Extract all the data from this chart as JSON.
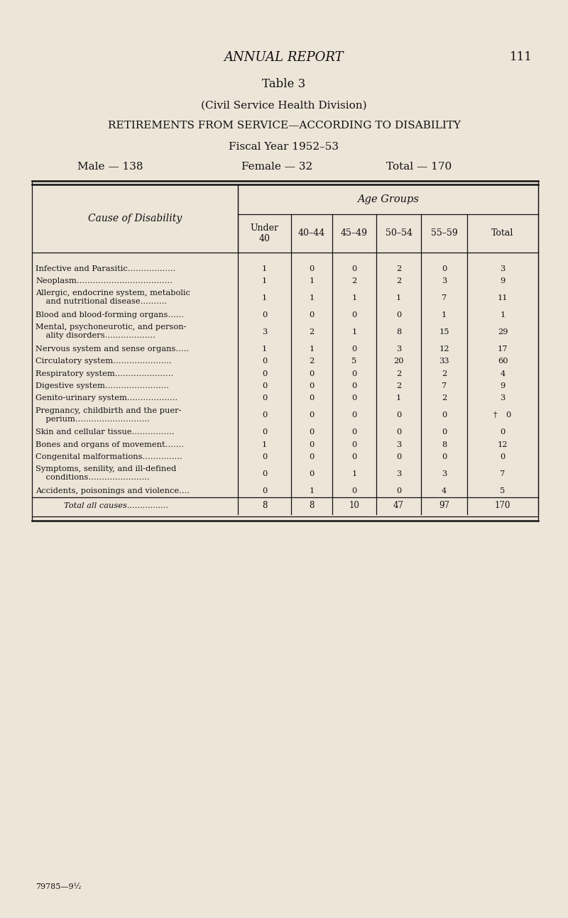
{
  "page_header": "ANNUAL REPORT",
  "page_number": "111",
  "table_number": "Table 3",
  "subtitle1": "(Civil Service Health Division)",
  "subtitle2": "RETIREMENTS FROM SERVICE—ACCORDING TO DISABILITY",
  "subtitle3": "Fiscal Year 1952–53",
  "male_label": "Male — 138",
  "female_label": "Female — 32",
  "total_label": "Total — 170",
  "col_header_group": "Age Groups",
  "col_header_main": "Cause of Disability",
  "col_headers": [
    "Under\n40",
    "40–44",
    "45–49",
    "50–54",
    "55–59",
    "Total"
  ],
  "rows": [
    {
      "cause": "Infective and Parasitic..................",
      "cause2": null,
      "values": [
        1,
        0,
        0,
        2,
        0,
        3
      ]
    },
    {
      "cause": "Neoplasm....................................",
      "cause2": null,
      "values": [
        1,
        1,
        2,
        2,
        3,
        9
      ]
    },
    {
      "cause": "Allergic, endocrine system, metabolic",
      "cause2": "    and nutritional disease..........",
      "values": [
        1,
        1,
        1,
        1,
        7,
        11
      ]
    },
    {
      "cause": "Blood and blood-forming organs......",
      "cause2": null,
      "values": [
        0,
        0,
        0,
        0,
        1,
        1
      ]
    },
    {
      "cause": "Mental, psychoneurotic, and person-",
      "cause2": "    ality disorders...................",
      "values": [
        3,
        2,
        1,
        8,
        15,
        29
      ]
    },
    {
      "cause": "Nervous system and sense organs.....",
      "cause2": null,
      "values": [
        1,
        1,
        0,
        3,
        12,
        17
      ]
    },
    {
      "cause": "Circulatory system......................",
      "cause2": null,
      "values": [
        0,
        2,
        5,
        20,
        33,
        60
      ]
    },
    {
      "cause": "Respiratory system......................",
      "cause2": null,
      "values": [
        0,
        0,
        0,
        2,
        2,
        4
      ]
    },
    {
      "cause": "Digestive system........................",
      "cause2": null,
      "values": [
        0,
        0,
        0,
        2,
        7,
        9
      ]
    },
    {
      "cause": "Genito-urinary system...................",
      "cause2": null,
      "values": [
        0,
        0,
        0,
        1,
        2,
        3
      ]
    },
    {
      "cause": "Pregnancy, childbirth and the puer-",
      "cause2": "    perium............................",
      "values": [
        0,
        0,
        0,
        0,
        0,
        0
      ],
      "dagger": true
    },
    {
      "cause": "Skin and cellular tissue................",
      "cause2": null,
      "values": [
        0,
        0,
        0,
        0,
        0,
        0
      ]
    },
    {
      "cause": "Bones and organs of movement.......",
      "cause2": null,
      "values": [
        1,
        0,
        0,
        3,
        8,
        12
      ]
    },
    {
      "cause": "Congenital malformations...............",
      "cause2": null,
      "values": [
        0,
        0,
        0,
        0,
        0,
        0
      ]
    },
    {
      "cause": "Symptoms, senility, and ill-defined",
      "cause2": "    conditions.......................",
      "values": [
        0,
        0,
        1,
        3,
        3,
        7
      ]
    },
    {
      "cause": "Accidents, poisonings and violence....",
      "cause2": null,
      "values": [
        0,
        1,
        0,
        0,
        4,
        5
      ]
    }
  ],
  "total_row": {
    "cause": "Total all causes................",
    "values": [
      8,
      8,
      10,
      47,
      97,
      170
    ]
  },
  "footer": "79785—9½",
  "bg_color": "#ede5d8",
  "text_color": "#111111",
  "line_color": "#111111"
}
